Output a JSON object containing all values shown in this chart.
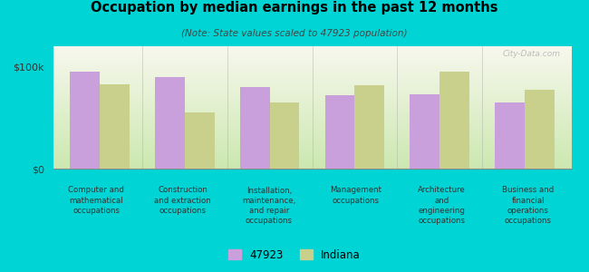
{
  "title": "Occupation by median earnings in the past 12 months",
  "subtitle": "(Note: State values scaled to 47923 population)",
  "categories": [
    "Computer and\nmathematical\noccupations",
    "Construction\nand extraction\noccupations",
    "Installation,\nmaintenance,\nand repair\noccupations",
    "Management\noccupations",
    "Architecture\nand\nengineering\noccupations",
    "Business and\nfinancial\noperations\noccupations"
  ],
  "values_47923": [
    95000,
    90000,
    80000,
    72000,
    73000,
    65000
  ],
  "values_indiana": [
    83000,
    55000,
    65000,
    82000,
    95000,
    77000
  ],
  "color_47923": "#c9a0dc",
  "color_indiana": "#c8d08c",
  "background_color": "#00d4d4",
  "plot_bg_top": "#f8f8ee",
  "plot_bg_bottom": "#cce8b0",
  "ylabel_100k": "$100k",
  "ylabel_0": "$0",
  "legend_47923": "47923",
  "legend_indiana": "Indiana",
  "ylim": [
    0,
    120000
  ],
  "bar_width": 0.35
}
